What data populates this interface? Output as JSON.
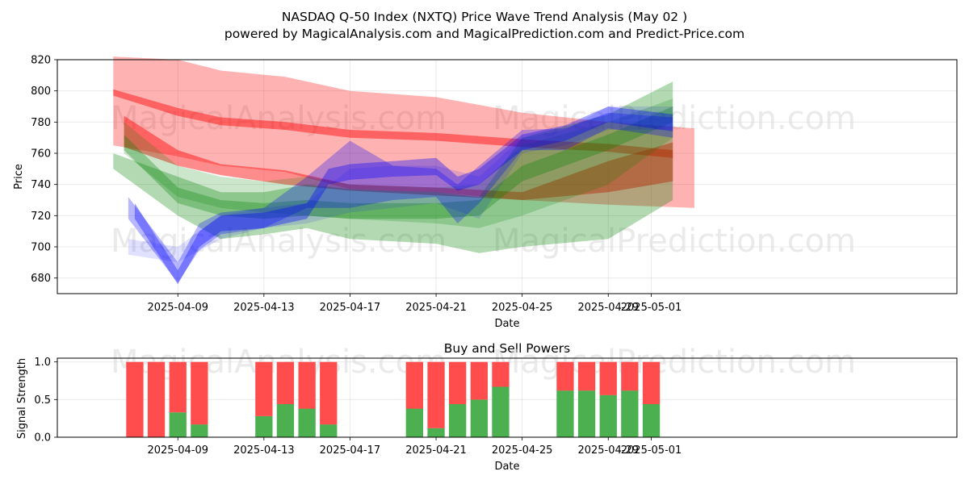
{
  "title": "NASDAQ Q-50 Index (NXTQ) Price Wave Trend Analysis (May 02 )",
  "subtitle": "powered by MagicalAnalysis.com and MagicalPrediction.com and Predict-Price.com",
  "watermarks": [
    "MagicalAnalysis.com",
    "MagicalPrediction.com"
  ],
  "colors": {
    "red": "#ff0000",
    "green": "#008000",
    "blue": "#0000ff",
    "buy": "#4caf50",
    "sell": "#ff4c4c"
  },
  "chart_data": [
    {
      "type": "area",
      "name": "price-wave",
      "xlabel": "Date",
      "ylabel": "Price",
      "xlim": [
        -5.6,
        36.2
      ],
      "ylim": [
        670,
        820
      ],
      "yticks": [
        680,
        700,
        720,
        740,
        760,
        780,
        800,
        820
      ],
      "xticks": [
        {
          "label": "2025-04-09",
          "day": 0
        },
        {
          "label": "2025-04-13",
          "day": 4
        },
        {
          "label": "2025-04-17",
          "day": 8
        },
        {
          "label": "2025-04-21",
          "day": 12
        },
        {
          "label": "2025-04-25",
          "day": 16
        },
        {
          "label": "2025-04-29",
          "day": 20
        },
        {
          "label": "2025-05-01",
          "day": 22
        }
      ],
      "grid": true,
      "bands": [
        {
          "name": "red-wide",
          "color": "red",
          "opacity": 0.3,
          "x": [
            -3,
            0,
            2,
            5,
            8,
            12,
            16,
            20,
            24
          ],
          "upper": [
            822,
            820,
            813,
            809,
            800,
            796,
            786,
            780,
            776
          ],
          "lower": [
            765,
            758,
            752,
            748,
            737,
            735,
            730,
            727,
            725
          ]
        },
        {
          "name": "red-upper-line",
          "color": "red",
          "opacity": 0.45,
          "x": [
            -3,
            0,
            2,
            5,
            8,
            12,
            16,
            20,
            23
          ],
          "upper": [
            801,
            789,
            783,
            780,
            775,
            773,
            769,
            766,
            762
          ],
          "lower": [
            797,
            784,
            778,
            775,
            770,
            768,
            764,
            761,
            757
          ]
        },
        {
          "name": "red-lower-line",
          "color": "red",
          "opacity": 0.45,
          "x": [
            -2.5,
            0,
            2,
            5,
            8,
            12,
            16,
            20,
            23
          ],
          "upper": [
            784,
            762,
            753,
            749,
            740,
            738,
            735,
            755,
            767
          ],
          "lower": [
            764,
            752,
            746,
            740,
            736,
            733,
            730,
            735,
            742
          ]
        },
        {
          "name": "green-wide",
          "color": "green",
          "opacity": 0.3,
          "x": [
            -3,
            0,
            2,
            4,
            6,
            8,
            12,
            14,
            16,
            20,
            23
          ],
          "upper": [
            760,
            745,
            735,
            735,
            740,
            737,
            735,
            732,
            770,
            785,
            806
          ],
          "lower": [
            750,
            720,
            705,
            708,
            712,
            705,
            702,
            696,
            700,
            705,
            730
          ]
        },
        {
          "name": "green-mid",
          "color": "green",
          "opacity": 0.2,
          "x": [
            -2.5,
            0,
            2,
            4,
            6,
            8,
            12,
            14,
            16,
            20,
            23
          ],
          "upper": [
            780,
            752,
            745,
            742,
            745,
            740,
            738,
            740,
            765,
            780,
            795
          ],
          "lower": [
            760,
            732,
            725,
            722,
            720,
            718,
            715,
            712,
            720,
            740,
            770
          ]
        },
        {
          "name": "green-line",
          "color": "green",
          "opacity": 0.3,
          "x": [
            -2.5,
            0,
            2,
            4,
            6,
            8,
            12,
            14,
            16,
            20,
            23
          ],
          "upper": [
            772,
            738,
            730,
            728,
            730,
            728,
            728,
            730,
            752,
            772,
            790
          ],
          "lower": [
            762,
            728,
            720,
            718,
            720,
            718,
            718,
            720,
            742,
            762,
            780
          ]
        },
        {
          "name": "blue-wide",
          "color": "blue",
          "opacity": 0.12,
          "x": [
            -2.3,
            0,
            2,
            4,
            6,
            8,
            10,
            12,
            14,
            16,
            18,
            20,
            23
          ],
          "upper": [
            705,
            700,
            720,
            725,
            728,
            750,
            752,
            752,
            745,
            770,
            775,
            790,
            790
          ],
          "lower": [
            695,
            690,
            705,
            712,
            715,
            722,
            725,
            728,
            718,
            760,
            765,
            775,
            775
          ]
        },
        {
          "name": "blue-dip",
          "color": "blue",
          "opacity": 0.28,
          "x": [
            -2.3,
            0,
            1,
            2,
            4,
            6,
            8,
            10,
            12,
            13,
            14,
            16,
            18,
            20,
            23
          ],
          "upper": [
            732,
            690,
            715,
            722,
            725,
            745,
            768,
            752,
            750,
            740,
            752,
            775,
            776,
            786,
            783
          ],
          "lower": [
            718,
            677,
            698,
            708,
            712,
            725,
            725,
            730,
            732,
            715,
            728,
            762,
            762,
            776,
            770
          ]
        },
        {
          "name": "blue-line",
          "color": "blue",
          "opacity": 0.35,
          "x": [
            -2,
            0,
            1,
            2,
            4,
            6,
            7,
            8,
            10,
            12,
            13,
            14,
            16,
            18,
            20,
            23
          ],
          "upper": [
            728,
            685,
            710,
            720,
            722,
            728,
            750,
            753,
            755,
            757,
            745,
            750,
            772,
            778,
            790,
            785
          ],
          "lower": [
            718,
            676,
            700,
            710,
            712,
            718,
            740,
            743,
            745,
            746,
            736,
            740,
            762,
            768,
            780,
            774
          ]
        }
      ]
    },
    {
      "type": "bar",
      "name": "buy-sell-powers",
      "title": "Buy and Sell Powers",
      "xlabel": "Date",
      "ylabel": "Signal Strength",
      "ylim": [
        0,
        1.05
      ],
      "yticks": [
        0.0,
        0.5,
        1.0
      ],
      "xticks": [
        {
          "label": "2025-04-09",
          "day": 0
        },
        {
          "label": "2025-04-13",
          "day": 4
        },
        {
          "label": "2025-04-17",
          "day": 8
        },
        {
          "label": "2025-04-21",
          "day": 12
        },
        {
          "label": "2025-04-25",
          "day": 16
        },
        {
          "label": "2025-04-29",
          "day": 20
        },
        {
          "label": "2025-05-01",
          "day": 22
        }
      ],
      "series": [
        {
          "name": "buy",
          "color": "buy"
        },
        {
          "name": "sell",
          "color": "sell"
        }
      ],
      "bars": [
        {
          "day": -2,
          "buy": 0.0
        },
        {
          "day": -1,
          "buy": 0.0
        },
        {
          "day": 0,
          "buy": 0.33
        },
        {
          "day": 1,
          "buy": 0.17
        },
        {
          "day": 4,
          "buy": 0.28
        },
        {
          "day": 5,
          "buy": 0.44
        },
        {
          "day": 6,
          "buy": 0.38
        },
        {
          "day": 7,
          "buy": 0.17
        },
        {
          "day": 11,
          "buy": 0.38
        },
        {
          "day": 12,
          "buy": 0.12
        },
        {
          "day": 13,
          "buy": 0.44
        },
        {
          "day": 14,
          "buy": 0.5
        },
        {
          "day": 15,
          "buy": 0.67
        },
        {
          "day": 18,
          "buy": 0.62
        },
        {
          "day": 19,
          "buy": 0.62
        },
        {
          "day": 20,
          "buy": 0.56
        },
        {
          "day": 21,
          "buy": 0.62
        },
        {
          "day": 22,
          "buy": 0.44
        }
      ]
    }
  ]
}
